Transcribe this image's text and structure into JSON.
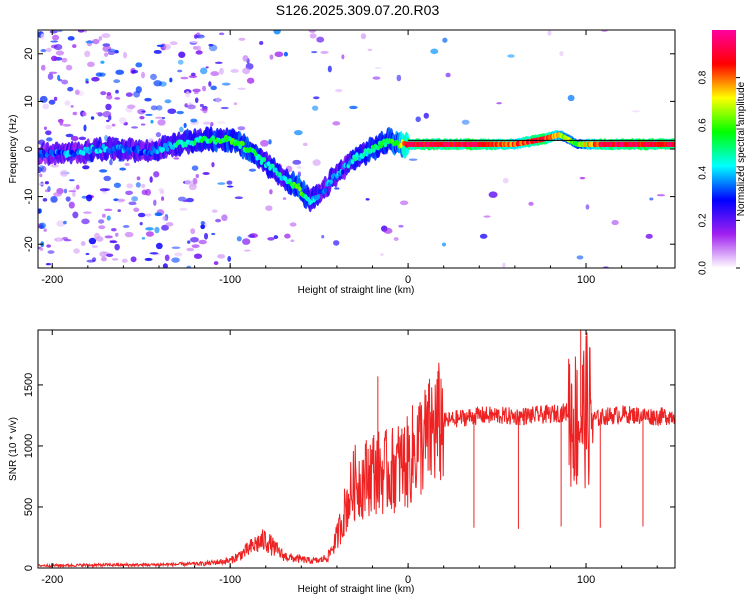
{
  "title": "S126.2025.309.07.20.R03",
  "chart_data": [
    {
      "type": "heatmap",
      "name": "spectrogram",
      "xlabel": "Height of straight line (km)",
      "ylabel": "Frequency (Hz)",
      "xlim": [
        -208,
        150
      ],
      "ylim": [
        -25,
        25
      ],
      "xticks": [
        -200,
        -100,
        0,
        100
      ],
      "xtick_labels": [
        "-200",
        "-100",
        "0",
        "100"
      ],
      "yticks": [
        -20,
        -10,
        0,
        10,
        20
      ],
      "ytick_labels": [
        "-20",
        "-10",
        "0",
        "10",
        "20"
      ],
      "colorbar": {
        "label": "Normalized spectral amplitude",
        "range": [
          0,
          1
        ],
        "ticks": [
          0.0,
          0.2,
          0.4,
          0.6,
          0.8
        ],
        "tick_labels": [
          "0.0",
          "0.2",
          "0.4",
          "0.6",
          "0.8"
        ],
        "colors": [
          "#ffffff",
          "#a020f0",
          "#0000ff",
          "#00ffff",
          "#00ff00",
          "#ffff00",
          "#ff0000",
          "#ff00a0"
        ]
      },
      "ridge": {
        "x": [
          -208,
          -190,
          -175,
          -160,
          -145,
          -130,
          -115,
          -100,
          -90,
          -80,
          -70,
          -62,
          -55,
          -48,
          -42,
          -36,
          -30,
          -25,
          -20,
          -15,
          -10,
          -5,
          0,
          10,
          20,
          40,
          60,
          75,
          85,
          95,
          110,
          130,
          150
        ],
        "frequency": [
          -1,
          -1,
          0,
          0,
          -0.5,
          1,
          2,
          2,
          0,
          -3,
          -6,
          -8,
          -11,
          -9,
          -6,
          -4,
          -2,
          -1,
          0,
          1,
          2,
          1,
          1,
          1,
          1,
          1,
          1,
          2,
          3,
          1,
          1,
          1,
          1
        ],
        "amplitude": [
          0.3,
          0.35,
          0.4,
          0.35,
          0.35,
          0.45,
          0.5,
          0.55,
          0.55,
          0.45,
          0.45,
          0.6,
          0.45,
          0.35,
          0.4,
          0.35,
          0.45,
          0.45,
          0.5,
          0.55,
          0.55,
          0.6,
          0.9,
          0.9,
          0.9,
          0.9,
          0.8,
          0.9,
          0.7,
          0.6,
          0.9,
          0.9,
          0.9
        ]
      }
    },
    {
      "type": "line",
      "name": "snr",
      "xlabel": "Height of straight line (km)",
      "ylabel": "SNR (10 * v/v)",
      "xlim": [
        -208,
        150
      ],
      "ylim": [
        0,
        1950
      ],
      "xticks": [
        -200,
        -100,
        0,
        100
      ],
      "xtick_labels": [
        "-200",
        "-100",
        "0",
        "100"
      ],
      "yticks": [
        0,
        500,
        1000,
        1500
      ],
      "ytick_labels": [
        "0",
        "500",
        "1000",
        "1500"
      ],
      "color": "#ee2222",
      "series": [
        {
          "name": "SNR",
          "x": [
            -208,
            -190,
            -170,
            -150,
            -130,
            -115,
            -100,
            -95,
            -90,
            -85,
            -80,
            -75,
            -70,
            -65,
            -60,
            -55,
            -50,
            -45,
            -40,
            -35,
            -30,
            -25,
            -20,
            -15,
            -10,
            -5,
            0,
            5,
            10,
            15,
            20,
            30,
            40,
            50,
            60,
            70,
            80,
            90,
            95,
            100,
            105,
            110,
            120,
            130,
            140,
            150
          ],
          "values": [
            20,
            22,
            25,
            25,
            30,
            35,
            60,
            100,
            150,
            200,
            230,
            160,
            100,
            80,
            70,
            60,
            60,
            90,
            250,
            500,
            700,
            720,
            800,
            780,
            790,
            840,
            860,
            1000,
            1050,
            1150,
            1200,
            1230,
            1250,
            1250,
            1240,
            1250,
            1260,
            1280,
            1200,
            1300,
            1220,
            1240,
            1260,
            1250,
            1240,
            1250
          ]
        }
      ],
      "spikes_down": [
        {
          "x": 37,
          "value": 330
        },
        {
          "x": 62,
          "value": 320
        },
        {
          "x": 86,
          "value": 340
        },
        {
          "x": 108,
          "value": 330
        },
        {
          "x": 132,
          "value": 340
        }
      ],
      "spikes_up": [
        {
          "x": -17,
          "value": 1570
        },
        {
          "x": 97,
          "value": 1950
        },
        {
          "x": 100,
          "value": 1900
        }
      ]
    }
  ]
}
